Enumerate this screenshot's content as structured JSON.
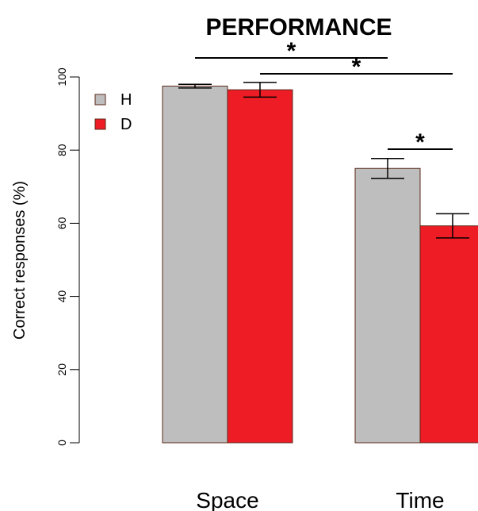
{
  "chart_data": {
    "type": "bar",
    "title": "PERFORMANCE",
    "xlabel": "",
    "ylabel": "Correct responses (%)",
    "ylim": [
      0,
      100
    ],
    "yticks": [
      0,
      20,
      40,
      60,
      80,
      100
    ],
    "categories": [
      "Space",
      "Time"
    ],
    "series": [
      {
        "name": "H",
        "color": "#bebebe",
        "values": [
          97.5,
          75.0
        ],
        "errors": [
          0.5,
          2.7
        ]
      },
      {
        "name": "D",
        "color": "#ee1c25",
        "values": [
          96.5,
          59.3
        ],
        "errors": [
          2.0,
          3.3
        ]
      }
    ],
    "significance": [
      {
        "label": "*",
        "from": {
          "category": "Space",
          "series": "H"
        },
        "to": {
          "category": "Time",
          "series": "H"
        }
      },
      {
        "label": "*",
        "from": {
          "category": "Space",
          "series": "D"
        },
        "to": {
          "category": "Time",
          "series": "D"
        }
      },
      {
        "label": "*",
        "from": {
          "category": "Time",
          "series": "H"
        },
        "to": {
          "category": "Time",
          "series": "D"
        }
      }
    ],
    "legend": {
      "position": "top-left"
    },
    "grid": false
  }
}
